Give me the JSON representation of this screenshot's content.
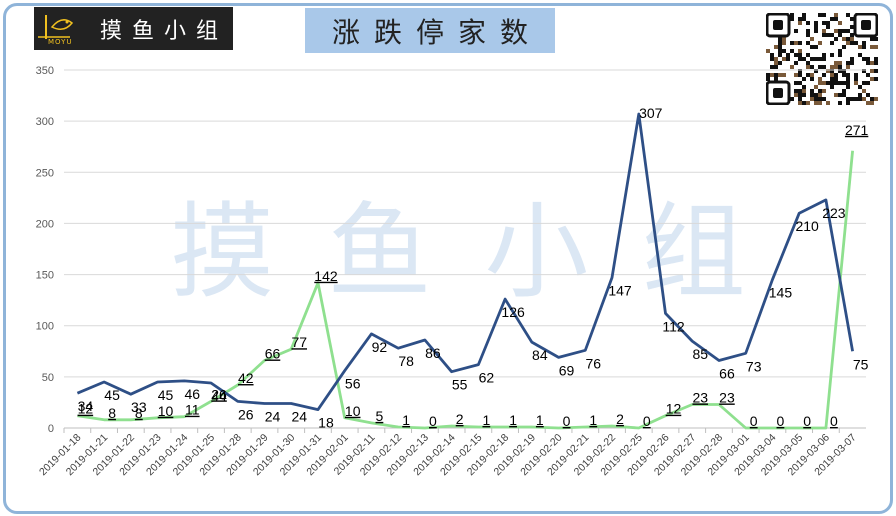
{
  "logo": {
    "text": "摸鱼小组",
    "sub": "MOYU"
  },
  "title": "涨跌停家数",
  "watermark": "摸 鱼 小 组",
  "chart_data": {
    "type": "line",
    "categories": [
      "2019-01-18",
      "2019-01-21",
      "2019-01-22",
      "2019-01-23",
      "2019-01-24",
      "2019-01-25",
      "2019-01-28",
      "2019-01-29",
      "2019-01-30",
      "2019-01-31",
      "2019-02-01",
      "2019-02-11",
      "2019-02-12",
      "2019-02-13",
      "2019-02-14",
      "2019-02-15",
      "2019-02-18",
      "2019-02-19",
      "2019-02-20",
      "2019-02-21",
      "2019-02-22",
      "2019-02-25",
      "2019-02-26",
      "2019-02-27",
      "2019-02-28",
      "2019-03-01",
      "2019-03-04",
      "2019-03-05",
      "2019-03-06",
      "2019-03-07"
    ],
    "series": [
      {
        "values": [
          34,
          45,
          33,
          45,
          46,
          44,
          26,
          24,
          24,
          18,
          56,
          92,
          78,
          86,
          55,
          62,
          126,
          84,
          69,
          76,
          147,
          307,
          112,
          85,
          66,
          73,
          145,
          210,
          223,
          75
        ]
      },
      {
        "values": [
          12,
          8,
          8,
          10,
          11,
          26,
          42,
          66,
          77,
          142,
          10,
          5,
          1,
          0,
          2,
          1,
          1,
          1,
          0,
          1,
          2,
          0,
          12,
          23,
          23,
          0,
          0,
          0,
          0,
          271
        ]
      }
    ],
    "yticks": [
      "0",
      "50",
      "100",
      "150",
      "200",
      "250",
      "300",
      "350"
    ],
    "ylim": [
      0,
      350
    ],
    "grid": true,
    "colors": {
      "blue": "#2e4f86",
      "green": "#8fe08f"
    }
  }
}
